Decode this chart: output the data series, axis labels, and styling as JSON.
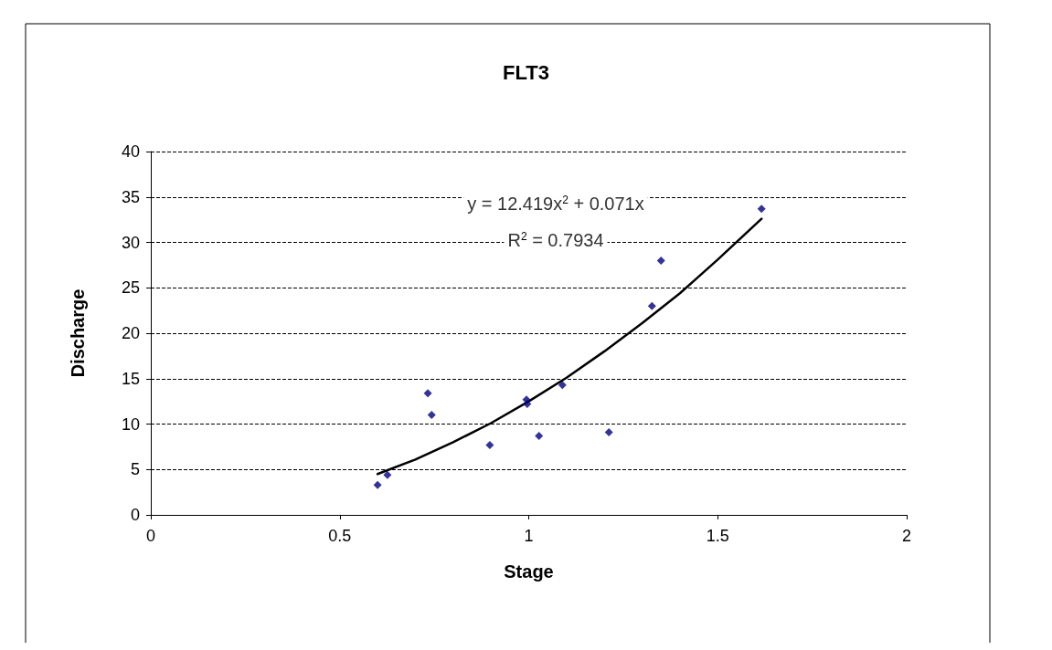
{
  "chart_data": {
    "type": "scatter",
    "title": "FLT3",
    "xlabel": "Stage",
    "ylabel": "Discharge",
    "xlim": [
      0,
      2
    ],
    "xticks": [
      0,
      0.5,
      1,
      1.5,
      2
    ],
    "ylim": [
      0,
      40
    ],
    "yticks": [
      0,
      5,
      10,
      15,
      20,
      25,
      30,
      35,
      40
    ],
    "grid": "y",
    "marker": "diamond",
    "annotations": [
      "y = 12.419x$^{2}$ + 0.071x",
      "R$^{2}$ = 0.7934"
    ],
    "series": [
      {
        "color": "#000080",
        "x": [
          0.6,
          0.626,
          0.733,
          0.743,
          0.897,
          0.994,
          0.996,
          1.027,
          1.089,
          1.212,
          1.326,
          1.35,
          1.616
        ],
        "values": [
          3.3,
          4.4,
          13.4,
          11.0,
          7.7,
          12.7,
          12.2,
          8.7,
          14.3,
          9.1,
          23.0,
          28.0,
          33.7
        ]
      },
      {
        "type": "line",
        "color": "#000000",
        "line_style": "solid",
        "marker": "none",
        "x": [
          0.6,
          0.7,
          0.8,
          0.9,
          1.0,
          1.1,
          1.2,
          1.3,
          1.4,
          1.5,
          1.616
        ],
        "values": [
          4.5,
          6.1,
          8.0,
          10.1,
          12.5,
          15.1,
          18.0,
          21.1,
          24.4,
          28.1,
          32.6
        ]
      }
    ]
  }
}
